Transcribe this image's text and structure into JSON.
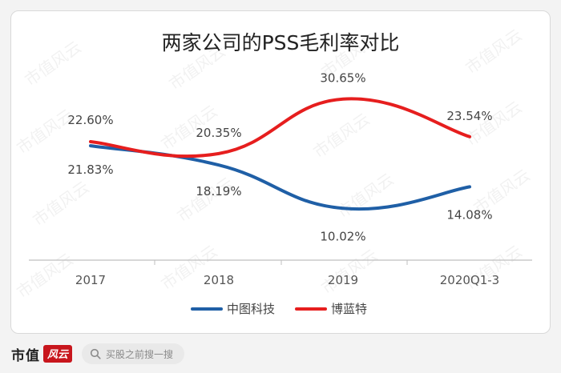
{
  "chart_data": {
    "type": "line",
    "title": "两家公司的PSS毛利率对比",
    "categories": [
      "2017",
      "2018",
      "2019",
      "2020Q1-3"
    ],
    "series": [
      {
        "name": "中图科技",
        "color": "#1f5fa6",
        "values": [
          21.83,
          18.19,
          10.02,
          14.08
        ],
        "labels": [
          "21.83%",
          "18.19%",
          "10.02%",
          "14.08%"
        ]
      },
      {
        "name": "博蓝特",
        "color": "#e61e1e",
        "values": [
          22.6,
          20.35,
          30.65,
          23.54
        ],
        "labels": [
          "22.60%",
          "20.35%",
          "30.65%",
          "23.54%"
        ]
      }
    ],
    "legend_position": "bottom",
    "grid": false
  },
  "watermark": "市值风云",
  "footer": {
    "brand": "市值",
    "logo_glyph": "风云",
    "search_placeholder": "买股之前搜一搜",
    "search_icon": "search-icon"
  }
}
